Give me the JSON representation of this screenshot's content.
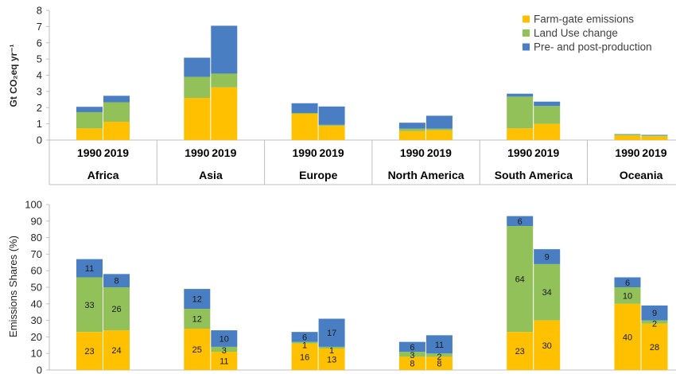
{
  "chart_data": [
    {
      "type": "bar",
      "stacked": true,
      "ylabel": "Gt CO₂eq yr⁻¹",
      "ylim": [
        0,
        8
      ],
      "yticks": [
        "0",
        "1",
        "2",
        "3",
        "4",
        "5",
        "6",
        "7",
        "8"
      ],
      "grid": false,
      "legend": "top-right",
      "groups": [
        "Africa",
        "Asia",
        "Europe",
        "North America",
        "South America",
        "Oceania"
      ],
      "years": [
        "1990",
        "2019"
      ],
      "series": [
        {
          "name": "Farm-gate emissions",
          "color": "#FFC000",
          "values": [
            [
              0.72,
              1.13
            ],
            [
              2.6,
              3.25
            ],
            [
              1.62,
              0.87
            ],
            [
              0.55,
              0.6
            ],
            [
              0.72,
              1.0
            ],
            [
              0.28,
              0.23
            ]
          ]
        },
        {
          "name": "Land Use change",
          "color": "#92C15A",
          "values": [
            [
              1.0,
              1.2
            ],
            [
              1.3,
              0.85
            ],
            [
              0.05,
              0.07
            ],
            [
              0.15,
              0.1
            ],
            [
              1.96,
              1.1
            ],
            [
              0.07,
              0.05
            ]
          ]
        },
        {
          "name": "Pre- and post-production",
          "color": "#4A7EC2",
          "values": [
            [
              0.33,
              0.4
            ],
            [
              1.18,
              2.95
            ],
            [
              0.6,
              1.13
            ],
            [
              0.37,
              0.8
            ],
            [
              0.18,
              0.27
            ],
            [
              0.02,
              0.04
            ]
          ]
        }
      ]
    },
    {
      "type": "bar",
      "stacked": true,
      "ylabel": "Emissions Shares (%)",
      "ylim": [
        0,
        100
      ],
      "yticks": [
        "0",
        "10",
        "20",
        "30",
        "40",
        "50",
        "60",
        "70",
        "80",
        "90",
        "100"
      ],
      "grid": false,
      "groups": [
        "Africa",
        "Asia",
        "Europe",
        "North America",
        "South America",
        "Oceania"
      ],
      "years": [
        "1990",
        "2019"
      ],
      "series": [
        {
          "name": "Farm-gate emissions",
          "color": "#FFC000",
          "values": [
            [
              23,
              24
            ],
            [
              25,
              11
            ],
            [
              16,
              13
            ],
            [
              8,
              8
            ],
            [
              23,
              30
            ],
            [
              40,
              28
            ]
          ]
        },
        {
          "name": "Land Use change",
          "color": "#92C15A",
          "values": [
            [
              33,
              26
            ],
            [
              12,
              3
            ],
            [
              1,
              1
            ],
            [
              3,
              2
            ],
            [
              64,
              34
            ],
            [
              10,
              2
            ]
          ]
        },
        {
          "name": "Pre- and post-production",
          "color": "#4A7EC2",
          "values": [
            [
              11,
              8
            ],
            [
              12,
              10
            ],
            [
              6,
              17
            ],
            [
              6,
              11
            ],
            [
              6,
              9
            ],
            [
              6,
              9
            ]
          ]
        }
      ]
    }
  ]
}
